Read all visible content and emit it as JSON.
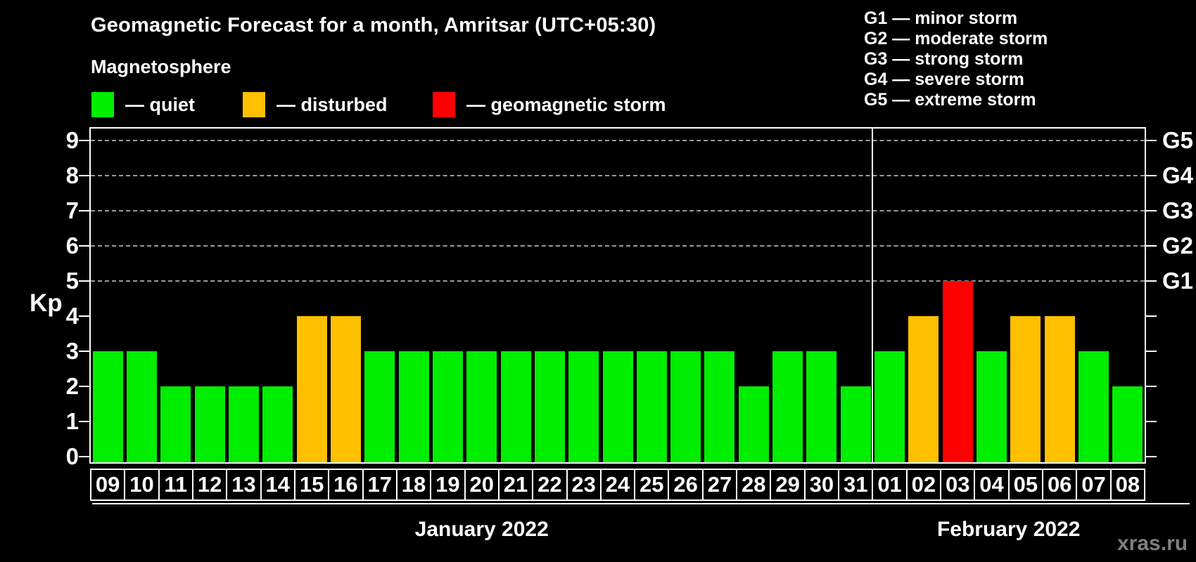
{
  "header": {
    "title": "Geomagnetic Forecast for a month, Amritsar (UTC+05:30)",
    "subtitle": "Magnetosphere",
    "legend": [
      {
        "key": "quiet",
        "label": "— quiet",
        "color": "#00ee00"
      },
      {
        "key": "disturbed",
        "label": "— disturbed",
        "color": "#ffc000"
      },
      {
        "key": "storm",
        "label": "— geomagnetic storm",
        "color": "#ff0000"
      }
    ],
    "storm_scale": [
      "G1 — minor storm",
      "G2 — moderate storm",
      "G3 — strong storm",
      "G4 — severe storm",
      "G5 — extreme storm"
    ]
  },
  "chart_data": {
    "type": "bar",
    "title": "Geomagnetic Forecast for a month, Amritsar (UTC+05:30)",
    "ylabel": "Kp",
    "ylim": [
      0,
      9
    ],
    "yticks": [
      0,
      1,
      2,
      3,
      4,
      5,
      6,
      7,
      8,
      9
    ],
    "gridlines_at": [
      5,
      6,
      7,
      8,
      9
    ],
    "grid": "dashed horizontal lines at storm levels G1–G5",
    "legend_position": "top-left",
    "right_axis": [
      {
        "level": 5,
        "label": "G1"
      },
      {
        "level": 6,
        "label": "G2"
      },
      {
        "level": 7,
        "label": "G3"
      },
      {
        "level": 8,
        "label": "G4"
      },
      {
        "level": 9,
        "label": "G5"
      }
    ],
    "months": [
      {
        "label": "January 2022",
        "days": 23
      },
      {
        "label": "February 2022",
        "days": 8
      }
    ],
    "categories": [
      "09",
      "10",
      "11",
      "12",
      "13",
      "14",
      "15",
      "16",
      "17",
      "18",
      "19",
      "20",
      "21",
      "22",
      "23",
      "24",
      "25",
      "26",
      "27",
      "28",
      "29",
      "30",
      "31",
      "01",
      "02",
      "03",
      "04",
      "05",
      "06",
      "07",
      "08"
    ],
    "values": [
      3,
      3,
      2,
      2,
      2,
      2,
      4,
      4,
      3,
      3,
      3,
      3,
      3,
      3,
      3,
      3,
      3,
      3,
      3,
      2,
      3,
      3,
      2,
      3,
      4,
      5,
      3,
      4,
      4,
      3,
      2
    ],
    "statuses": [
      "quiet",
      "quiet",
      "quiet",
      "quiet",
      "quiet",
      "quiet",
      "disturbed",
      "disturbed",
      "quiet",
      "quiet",
      "quiet",
      "quiet",
      "quiet",
      "quiet",
      "quiet",
      "quiet",
      "quiet",
      "quiet",
      "quiet",
      "quiet",
      "quiet",
      "quiet",
      "quiet",
      "quiet",
      "disturbed",
      "storm",
      "quiet",
      "disturbed",
      "disturbed",
      "quiet",
      "quiet"
    ],
    "colors": {
      "quiet": "#00ee00",
      "disturbed": "#ffc000",
      "storm": "#ff0000"
    }
  },
  "watermark": "xras.ru"
}
